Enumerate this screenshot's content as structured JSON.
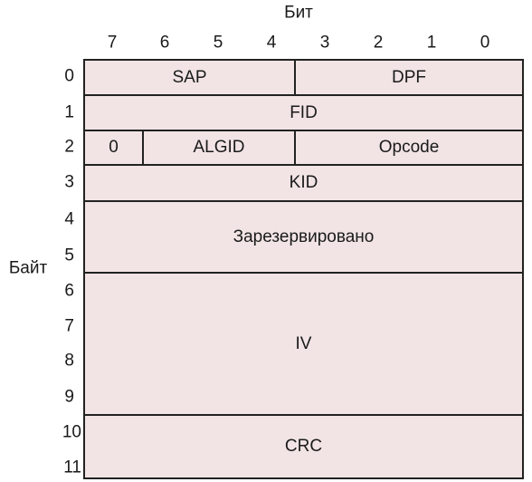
{
  "axis": {
    "bit_title": "Бит",
    "byte_title": "Байт",
    "bits": [
      "7",
      "6",
      "5",
      "4",
      "3",
      "2",
      "1",
      "0"
    ],
    "bytes": [
      "0",
      "1",
      "2",
      "3",
      "4",
      "5",
      "6",
      "7",
      "8",
      "9",
      "10",
      "11"
    ]
  },
  "fields": {
    "sap": "SAP",
    "dpf": "DPF",
    "fid": "FID",
    "zero": "0",
    "algid": "ALGID",
    "opcode": "Opcode",
    "kid": "KID",
    "reserved": "Зарезервировано",
    "iv": "IV",
    "crc": "CRC"
  },
  "colors": {
    "cell_fill": "#f2e4e4",
    "border": "#222222"
  }
}
